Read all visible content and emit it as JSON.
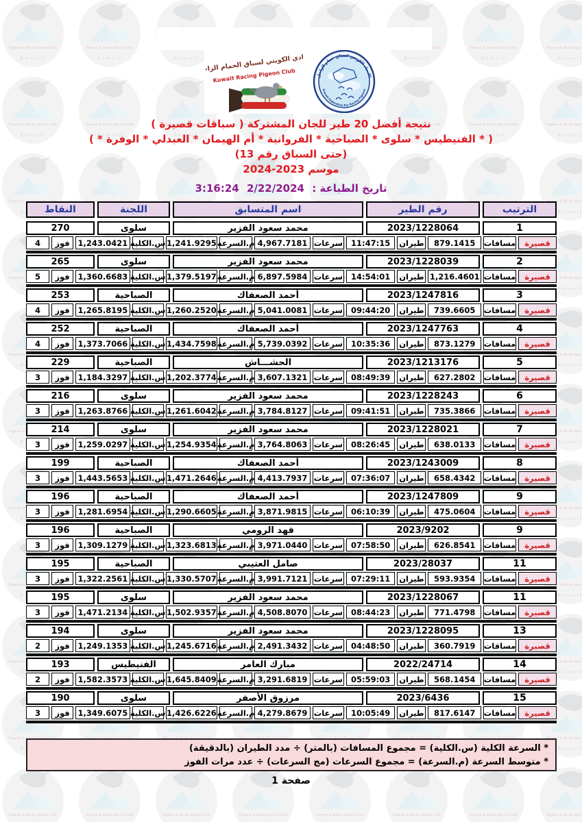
{
  "logos": {
    "club_name_ar": "النادي الكويتي لسباق الحمام الزاجل",
    "club_name_en": "Kuwait Racing Pigeon Club",
    "federation_name_ar": "الاتحاد الكويتي لسباق حمام الزاجل",
    "federation_name_en": "Kuwait Federation For Racing Pigeons"
  },
  "watermark": {
    "club_line": "Pigeon & Birds Sports Club",
    "country": "Kuwait"
  },
  "title": {
    "line1": "نتيجة أفضل 20 طير للجان المشتركة ( سباقات قصيرة )",
    "line2": "( * الفنيطيس * سلوى * الصباحية * الفروانية * أم الهيمان * العبدلي * الوفرة * )",
    "line3": "(حتى السباق رقم 13)",
    "line4_word": "موسم",
    "line4_years": "2024-2023"
  },
  "print": {
    "label": "تاريخ الطباعة :",
    "date": "2/22/2024",
    "time": "3:16:24"
  },
  "table": {
    "headers": {
      "rank": "الترتيب",
      "bird_no": "رقم الطير",
      "name": "اسم المتسابق",
      "committee": "اللجنة",
      "points": "النقاط"
    },
    "detail_labels": {
      "category": "قصيرة",
      "distances": "مسافات",
      "flight": "طيران",
      "speeds": "سرعات",
      "avg_speed": "م.السرعة",
      "total_speed": "س.الكلية",
      "wins": "فوز"
    },
    "entries": [
      {
        "rank": "1",
        "bird_no": "2023/1228064",
        "name": "محمد سعود الفزير",
        "committee": "سلوى",
        "points": "270",
        "distances": "879.1415",
        "flight": "11:47:15",
        "speeds": "4,967.7181",
        "avg_speed": "1,241.9295",
        "total_speed": "1,243.0421",
        "wins": "4"
      },
      {
        "rank": "2",
        "bird_no": "2023/1228039",
        "name": "محمد سعود الفزير",
        "committee": "سلوى",
        "points": "265",
        "distances": "1,216.4601",
        "flight": "14:54:01",
        "speeds": "6,897.5984",
        "avg_speed": "1,379.5197",
        "total_speed": "1,360.6683",
        "wins": "5"
      },
      {
        "rank": "3",
        "bird_no": "2023/1247816",
        "name": "أحمد الصعفاك",
        "committee": "الصباحية",
        "points": "253",
        "distances": "739.6605",
        "flight": "09:44:20",
        "speeds": "5,041.0081",
        "avg_speed": "1,260.2520",
        "total_speed": "1,265.8195",
        "wins": "4"
      },
      {
        "rank": "4",
        "bird_no": "2023/1247763",
        "name": "أحمد الصعفاك",
        "committee": "الصباحية",
        "points": "252",
        "distances": "873.1279",
        "flight": "10:35:36",
        "speeds": "5,739.0392",
        "avg_speed": "1,434.7598",
        "total_speed": "1,373.7066",
        "wins": "4"
      },
      {
        "rank": "5",
        "bird_no": "2023/1213176",
        "name": "الحشـــاش",
        "committee": "الصباحية",
        "points": "229",
        "distances": "627.2802",
        "flight": "08:49:39",
        "speeds": "3,607.1321",
        "avg_speed": "1,202.3774",
        "total_speed": "1,184.3297",
        "wins": "3"
      },
      {
        "rank": "6",
        "bird_no": "2023/1228243",
        "name": "محمد سعود الفزير",
        "committee": "سلوى",
        "points": "216",
        "distances": "735.3866",
        "flight": "09:41:51",
        "speeds": "3,784.8127",
        "avg_speed": "1,261.6042",
        "total_speed": "1,263.8766",
        "wins": "3"
      },
      {
        "rank": "7",
        "bird_no": "2023/1228021",
        "name": "محمد سعود الفزير",
        "committee": "سلوى",
        "points": "214",
        "distances": "638.0133",
        "flight": "08:26:45",
        "speeds": "3,764.8063",
        "avg_speed": "1,254.9354",
        "total_speed": "1,259.0297",
        "wins": "3"
      },
      {
        "rank": "8",
        "bird_no": "2023/1243009",
        "name": "أحمد الصعفاك",
        "committee": "الصباحية",
        "points": "199",
        "distances": "658.4342",
        "flight": "07:36:07",
        "speeds": "4,413.7937",
        "avg_speed": "1,471.2646",
        "total_speed": "1,443.5653",
        "wins": "3"
      },
      {
        "rank": "9",
        "bird_no": "2023/1247809",
        "name": "أحمد الصعفاك",
        "committee": "الصباحية",
        "points": "196",
        "distances": "475.0604",
        "flight": "06:10:39",
        "speeds": "3,871.9815",
        "avg_speed": "1,290.6605",
        "total_speed": "1,281.6954",
        "wins": "3"
      },
      {
        "rank": "9",
        "bird_no": "2023/9202",
        "name": "فهد الرومي",
        "committee": "الصباحية",
        "points": "196",
        "distances": "626.8541",
        "flight": "07:58:50",
        "speeds": "3,971.0440",
        "avg_speed": "1,323.6813",
        "total_speed": "1,309.1279",
        "wins": "3"
      },
      {
        "rank": "11",
        "bird_no": "2023/28037",
        "name": "صامل العتيبي",
        "committee": "الصباحية",
        "points": "195",
        "distances": "593.9354",
        "flight": "07:29:11",
        "speeds": "3,991.7121",
        "avg_speed": "1,330.5707",
        "total_speed": "1,322.2561",
        "wins": "3"
      },
      {
        "rank": "11",
        "bird_no": "2023/1228067",
        "name": "محمد سعود الفزير",
        "committee": "سلوى",
        "points": "195",
        "distances": "771.4798",
        "flight": "08:44:23",
        "speeds": "4,508.8070",
        "avg_speed": "1,502.9357",
        "total_speed": "1,471.2134",
        "wins": "3"
      },
      {
        "rank": "13",
        "bird_no": "2023/1228095",
        "name": "محمد سعود الفزير",
        "committee": "سلوى",
        "points": "194",
        "distances": "360.7919",
        "flight": "04:48:50",
        "speeds": "2,491.3432",
        "avg_speed": "1,245.6716",
        "total_speed": "1,249.1353",
        "wins": "2"
      },
      {
        "rank": "14",
        "bird_no": "2022/24714",
        "name": "مبارك العامر",
        "committee": "الفنيطيس",
        "points": "193",
        "distances": "568.1454",
        "flight": "05:59:03",
        "speeds": "3,291.6819",
        "avg_speed": "1,645.8409",
        "total_speed": "1,582.3573",
        "wins": "2"
      },
      {
        "rank": "15",
        "bird_no": "2023/6436",
        "name": "مرزوق الأصفر",
        "committee": "سلوى",
        "points": "190",
        "distances": "817.6147",
        "flight": "10:05:49",
        "speeds": "4,279.8679",
        "avg_speed": "1,426.6226",
        "total_speed": "1,349.6075",
        "wins": "3"
      }
    ]
  },
  "footnotes": {
    "line1": "* السرعة الكلية (س.الكلية) = مجموع المسافات (بالمتر) ÷ مدد الطيران (بالدقيقة)",
    "line2": "* متوسط السرعة (م.السرعة) = مجموع السرعات (مج السرعات) ÷ عدد مرات الفوز"
  },
  "page": {
    "label_word": "صفحة",
    "label_num": "1"
  },
  "colors": {
    "title_red": "#e01b20",
    "print_purple": "#8e1d8e",
    "header_bg": "#e7d4e9",
    "header_text": "#2a3a9f",
    "category_bg": "#f3e0ea",
    "category_text": "#cf1f1f",
    "footnote_bg": "#f8d9dc"
  }
}
